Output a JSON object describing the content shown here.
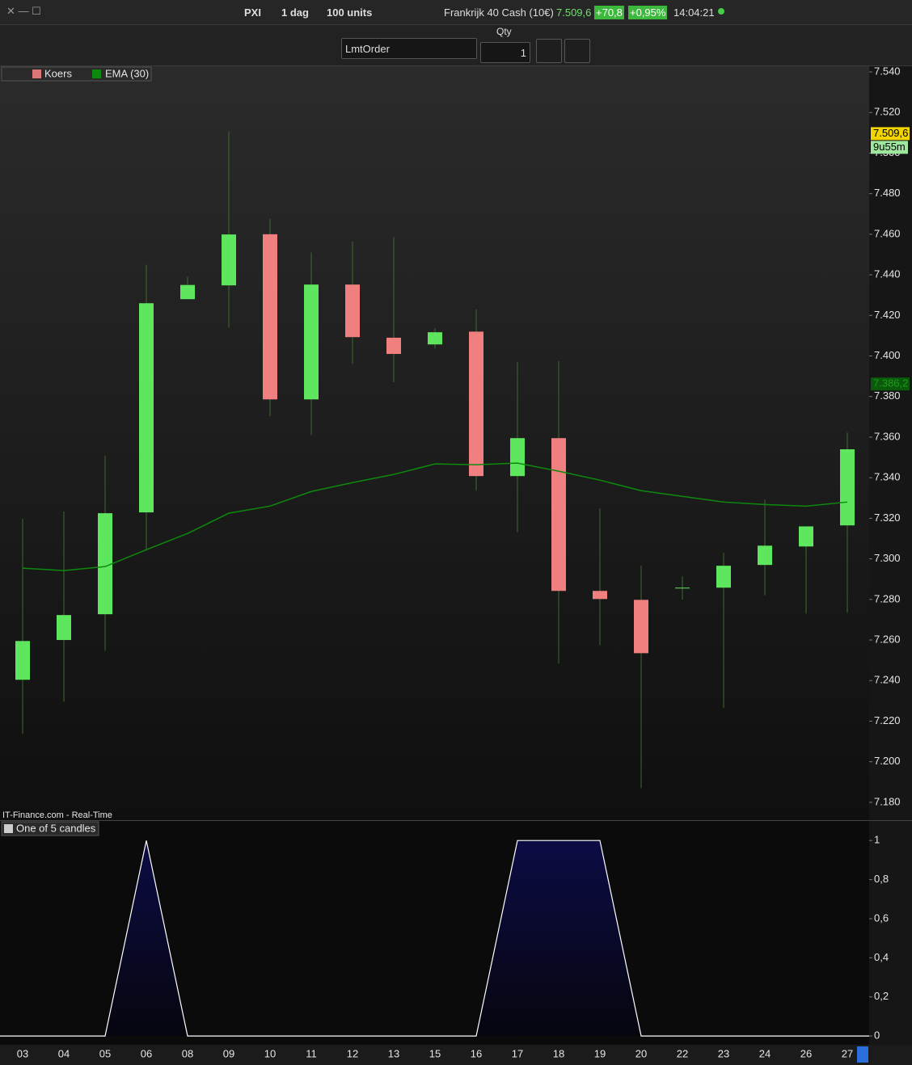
{
  "toolbar": {
    "symbol": "PXI",
    "period": "1 dag",
    "units": "100 units",
    "instrument": "Frankrijk 40 Cash (10€)",
    "price": "7.509,6",
    "change": "+70,8",
    "change_pct": "+0,95%",
    "time": "14:04:21"
  },
  "order_bar": {
    "qty_label": "Qty",
    "order_type": "LmtOrder",
    "qty": "1"
  },
  "source": "IT-Finance.com - Real-Time",
  "chart_data": [
    {
      "type": "candlestick",
      "name": "Koers",
      "up_color": "#5fe65f",
      "down_color": "#f08080",
      "wick_color": "#3d6b2c",
      "categories": [
        "03",
        "04",
        "05",
        "06",
        "08",
        "09",
        "10",
        "11",
        "12",
        "13",
        "15",
        "16",
        "17",
        "18",
        "19",
        "20",
        "22",
        "23",
        "24",
        "26",
        "27"
      ],
      "open": [
        7240.4,
        7260,
        7272.7,
        7322.9,
        7428,
        7434.8,
        7460,
        7378.6,
        7435.2,
        7409,
        7405.7,
        7412,
        7340.8,
        7359.5,
        7284.2,
        7279.8,
        7285.8,
        7285.8,
        7297,
        7306.1,
        7316.5
      ],
      "high": [
        7319.7,
        7323.3,
        7351,
        7445,
        7439,
        7510.5,
        7467.5,
        7451,
        7456.3,
        7458.7,
        7413.7,
        7422.9,
        7397,
        7397.4,
        7324.9,
        7296.6,
        7291.4,
        7303,
        7329.2,
        7316,
        7362.3
      ],
      "low": [
        7213.7,
        7229.6,
        7254.7,
        7304.5,
        7428,
        7414,
        7370.3,
        7361,
        7396.2,
        7387,
        7403.7,
        7333.6,
        7313.3,
        7248.4,
        7257.5,
        7187,
        7280,
        7226.5,
        7282,
        7273,
        7273.5
      ],
      "close": [
        7259.5,
        7272.3,
        7322.5,
        7426,
        7435,
        7459.9,
        7378.6,
        7435.2,
        7409.3,
        7401,
        7411.7,
        7340.8,
        7359.5,
        7284.2,
        7280.2,
        7253.5,
        7285.8,
        7296.6,
        7306.5,
        7316,
        7354
      ],
      "series": [
        {
          "name": "EMA (30)",
          "color": "#0d8a0d",
          "values": [
            7295.4,
            7294.2,
            7296.2,
            7304.5,
            7312.5,
            7322.5,
            7326,
            7333.2,
            7337.6,
            7341.6,
            7346.8,
            7346.4,
            7347.2,
            7343.2,
            7338.8,
            7333.6,
            7330.8,
            7328,
            7326.8,
            7326,
            7328
          ]
        }
      ],
      "ylim": [
        7171.2,
        7542.8
      ],
      "yticks": [
        {
          "value": 7180,
          "label": "7.180"
        },
        {
          "value": 7200,
          "label": "7.200"
        },
        {
          "value": 7220,
          "label": "7.220"
        },
        {
          "value": 7240,
          "label": "7.240"
        },
        {
          "value": 7260,
          "label": "7.260"
        },
        {
          "value": 7280,
          "label": "7.280"
        },
        {
          "value": 7300,
          "label": "7.300"
        },
        {
          "value": 7320,
          "label": "7.320"
        },
        {
          "value": 7340,
          "label": "7.340"
        },
        {
          "value": 7360,
          "label": "7.360"
        },
        {
          "value": 7380,
          "label": "7.380"
        },
        {
          "value": 7400,
          "label": "7.400"
        },
        {
          "value": 7420,
          "label": "7.420"
        },
        {
          "value": 7440,
          "label": "7.440"
        },
        {
          "value": 7460,
          "label": "7.460"
        },
        {
          "value": 7480,
          "label": "7.480"
        },
        {
          "value": 7500,
          "label": "7.500"
        },
        {
          "value": 7520,
          "label": "7.520"
        },
        {
          "value": 7540,
          "label": "7.540"
        }
      ],
      "last_price": {
        "value": 7509.6,
        "label": "7.509,6"
      },
      "countdown": "9u55m",
      "ema_marker": {
        "value": 7386.2,
        "label": "7.386,2"
      }
    },
    {
      "type": "area",
      "name": "One of 5 candles",
      "color": "#ffffff",
      "values": [
        0,
        0,
        0,
        1,
        0,
        0,
        0,
        0,
        0,
        0,
        0,
        0,
        1,
        1,
        1,
        0,
        0,
        0,
        0,
        0,
        0
      ],
      "ylim": [
        -0.045,
        1.1
      ],
      "yticks": [
        0,
        {
          "value": 0.2,
          "label": "0,2"
        },
        {
          "value": 0.4,
          "label": "0,4"
        },
        {
          "value": 0.6,
          "label": "0,6"
        },
        {
          "value": 0.8,
          "label": "0,8"
        },
        1
      ]
    }
  ]
}
